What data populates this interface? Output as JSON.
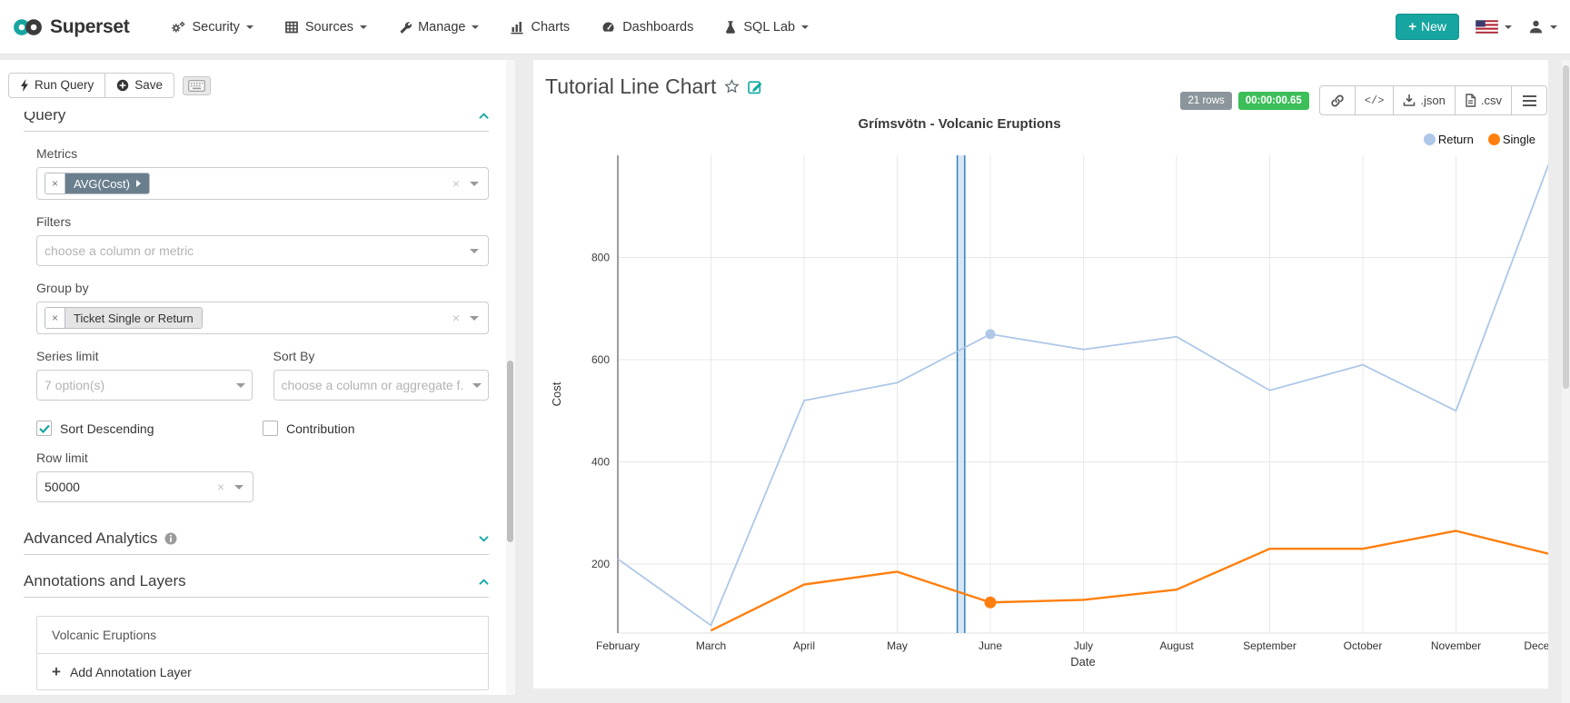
{
  "navbar": {
    "brand": "Superset",
    "menu": [
      {
        "label": "Security"
      },
      {
        "label": "Sources"
      },
      {
        "label": "Manage"
      },
      {
        "label": "Charts"
      },
      {
        "label": "Dashboards"
      },
      {
        "label": "SQL Lab"
      }
    ],
    "new_button_label": "New"
  },
  "toolbar": {
    "run_query_label": "Run Query",
    "save_label": "Save"
  },
  "panel": {
    "sections": {
      "query": "Query",
      "advanced": "Advanced Analytics",
      "annotations": "Annotations and Layers"
    },
    "fields": {
      "metrics_label": "Metrics",
      "metrics_token": "AVG(Cost)",
      "filters_label": "Filters",
      "filters_placeholder": "choose a column or metric",
      "groupby_label": "Group by",
      "groupby_token": "Ticket Single or Return",
      "series_limit_label": "Series limit",
      "series_limit_placeholder": "7 option(s)",
      "sort_by_label": "Sort By",
      "sort_by_placeholder": "choose a column or aggregate f.",
      "sort_descending_label": "Sort Descending",
      "contribution_label": "Contribution",
      "row_limit_label": "Row limit",
      "row_limit_value": "50000"
    },
    "annotations": {
      "layer_name": "Volcanic Eruptions",
      "add_label": "Add Annotation Layer"
    }
  },
  "chart": {
    "title": "Tutorial Line Chart",
    "rows_badge": "21 rows",
    "timer_badge": "00:00:00.65",
    "export_json_label": ".json",
    "export_csv_label": ".csv",
    "code_label": "</>",
    "chart_data": {
      "type": "line",
      "title": "Grímsvötn - Volcanic Eruptions",
      "xlabel": "Date",
      "ylabel": "Cost",
      "categories": [
        "February",
        "March",
        "April",
        "May",
        "June",
        "July",
        "August",
        "September",
        "October",
        "November",
        "December"
      ],
      "series": [
        {
          "name": "Return",
          "color": "#aec7e8",
          "values": [
            210,
            80,
            520,
            555,
            650,
            620,
            645,
            540,
            590,
            500,
            985
          ]
        },
        {
          "name": "Single",
          "color": "#ff7f0e",
          "values": [
            null,
            70,
            160,
            185,
            125,
            130,
            150,
            230,
            230,
            265,
            220
          ]
        }
      ],
      "marker_index": 4,
      "yticks": [
        200,
        400,
        600,
        800
      ],
      "ylim": [
        65,
        1000
      ],
      "grid": true,
      "legend_position": "top-right",
      "annotation_band": {
        "label": "Volcanic Eruptions",
        "x_start": 3.645,
        "x_end": 3.725,
        "fill": "#cde0f1",
        "stroke": "#3182bd"
      }
    }
  },
  "icons": {
    "clear_glyph": "×",
    "plus_glyph": "+"
  }
}
